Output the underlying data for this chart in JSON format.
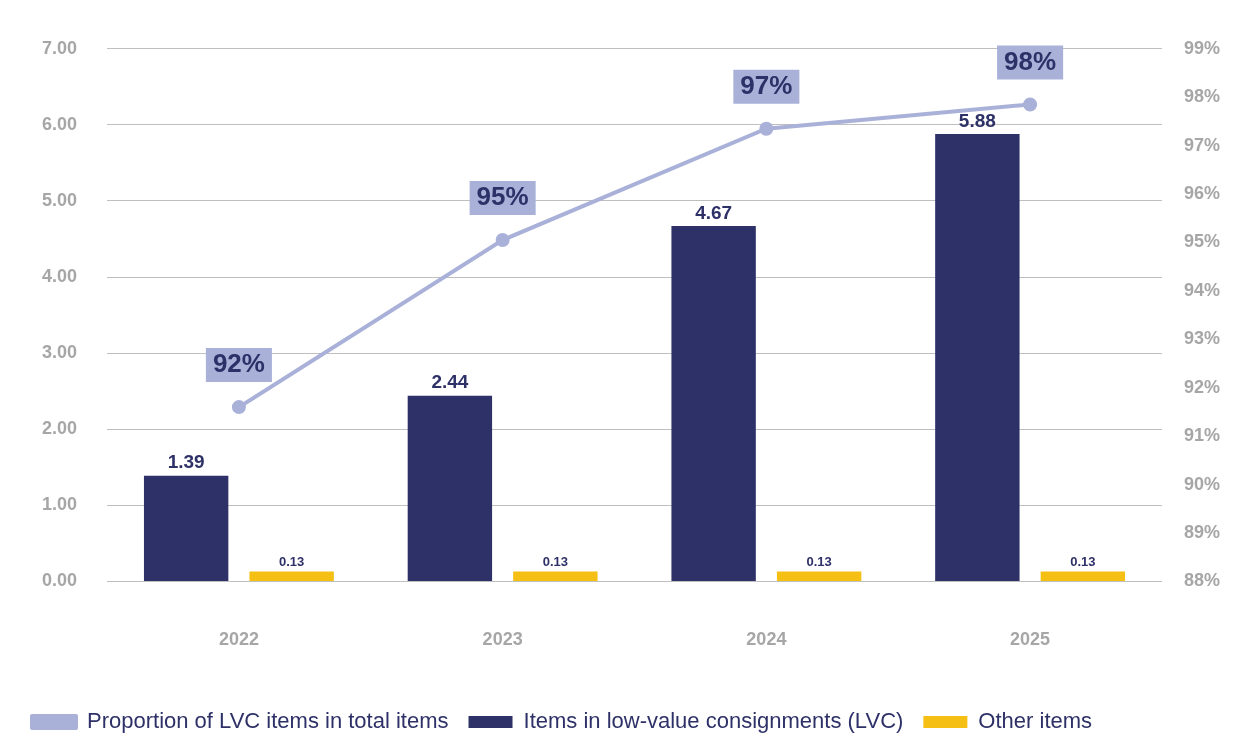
{
  "chart_data": {
    "type": "bar",
    "categories": [
      "2022",
      "2023",
      "2024",
      "2025"
    ],
    "series": [
      {
        "name": "Items in low-value consignments (LVC)",
        "color": "#2e3168",
        "values": [
          1.39,
          2.44,
          4.67,
          5.88
        ]
      },
      {
        "name": "Other items",
        "color": "#f5bf13",
        "values": [
          0.13,
          0.13,
          0.13,
          0.13
        ]
      },
      {
        "name": "Proportion of LVC items in total items",
        "type": "line",
        "axis": "y2",
        "color": "#a9b1d9",
        "values": [
          91.6,
          95.05,
          97.35,
          97.85
        ],
        "value_labels": [
          "92%",
          "95%",
          "97%",
          "98%"
        ]
      }
    ],
    "ylim": [
      0,
      7
    ],
    "yticks": [
      {
        "value": 0,
        "label": "0.00"
      },
      {
        "value": 1,
        "label": "1.00"
      },
      {
        "value": 2,
        "label": "2.00"
      },
      {
        "value": 3,
        "label": "3.00"
      },
      {
        "value": 4,
        "label": "4.00"
      },
      {
        "value": 5,
        "label": "5.00"
      },
      {
        "value": 6,
        "label": "6.00"
      },
      {
        "value": 7,
        "label": "7.00"
      }
    ],
    "y2lim": [
      88,
      99
    ],
    "y2ticks": [
      {
        "value": 88,
        "label": "88%"
      },
      {
        "value": 89,
        "label": "89%"
      },
      {
        "value": 90,
        "label": "90%"
      },
      {
        "value": 91,
        "label": "91%"
      },
      {
        "value": 92,
        "label": "92%"
      },
      {
        "value": 93,
        "label": "93%"
      },
      {
        "value": 94,
        "label": "94%"
      },
      {
        "value": 95,
        "label": "95%"
      },
      {
        "value": 96,
        "label": "96%"
      },
      {
        "value": 97,
        "label": "97%"
      },
      {
        "value": 98,
        "label": "98%"
      },
      {
        "value": 99,
        "label": "99%"
      }
    ],
    "data_labels": true,
    "grid": "y",
    "legend": "bottom",
    "marker": "circle",
    "line_style": "solid"
  }
}
